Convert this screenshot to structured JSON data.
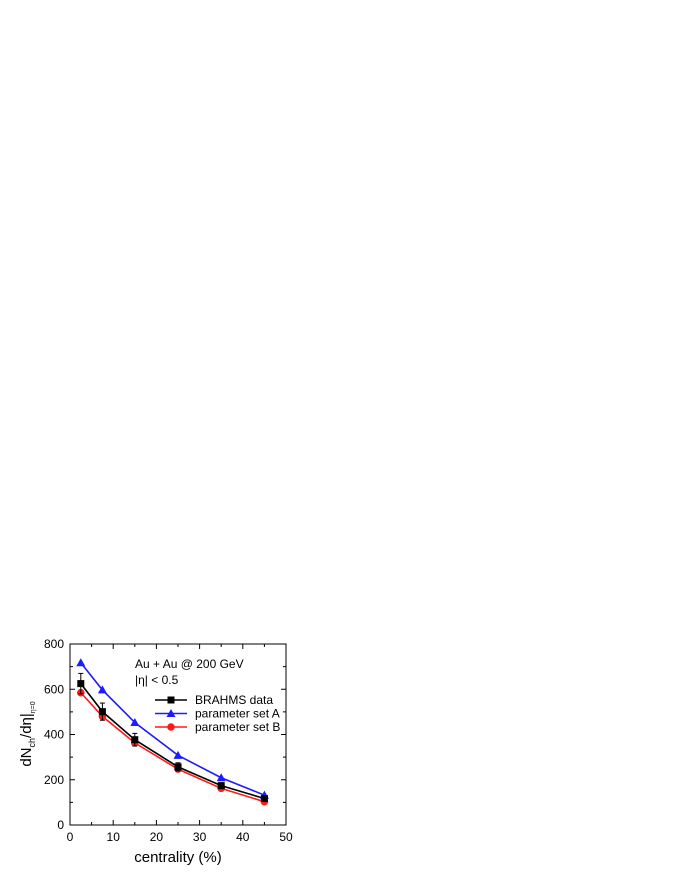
{
  "chart_data": {
    "type": "line",
    "title": "",
    "xlabel": "centrality (%)",
    "ylabel": {
      "main": "dN",
      "sub1": "ch",
      "mid": "/dη|",
      "sub2": "η=0"
    },
    "xlim": [
      0,
      50
    ],
    "ylim": [
      0,
      800
    ],
    "xticks": [
      0,
      10,
      20,
      30,
      40,
      50
    ],
    "yticks": [
      0,
      200,
      400,
      600,
      800
    ],
    "grid": false,
    "legend_position": "right",
    "annotations": [
      "Au + Au @ 200 GeV",
      "|η| < 0.5"
    ],
    "series": [
      {
        "name": "BRAHMS data",
        "color": "#000000",
        "marker": "square",
        "x": [
          2.5,
          7.5,
          15,
          25,
          35,
          45
        ],
        "y": [
          625,
          501,
          377,
          257,
          174,
          117
        ],
        "yerr": [
          45,
          38,
          28,
          18,
          12,
          8
        ]
      },
      {
        "name": "parameter set A",
        "color": "#1c1cff",
        "marker": "triangle",
        "x": [
          2.5,
          7.5,
          15,
          25,
          35,
          45
        ],
        "y": [
          717,
          597,
          453,
          308,
          209,
          132
        ]
      },
      {
        "name": "parameter set B",
        "color": "#ff1a1a",
        "marker": "circle",
        "x": [
          2.5,
          7.5,
          15,
          25,
          35,
          45
        ],
        "y": [
          585,
          480,
          363,
          247,
          162,
          103
        ]
      }
    ]
  }
}
